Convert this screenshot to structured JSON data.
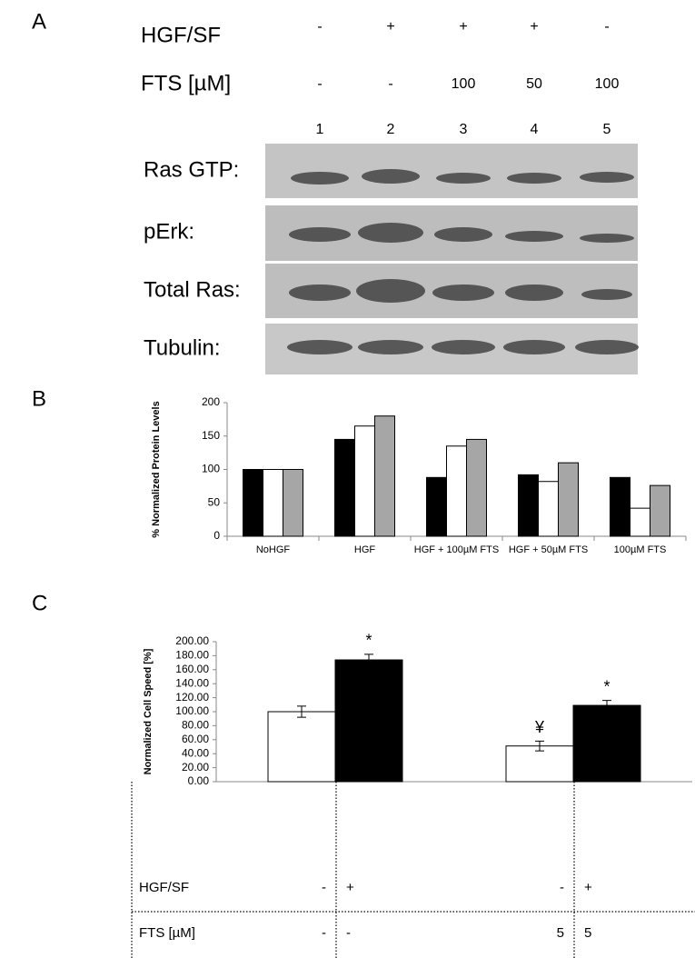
{
  "panel_a": {
    "letter": "A",
    "conditions": [
      {
        "label": "HGF/SF",
        "values": [
          "-",
          "+",
          "+",
          "+",
          "-"
        ]
      },
      {
        "label": "FTS [µM]",
        "values": [
          "-",
          "-",
          "100",
          "50",
          "100"
        ]
      }
    ],
    "lanes": [
      "1",
      "2",
      "3",
      "4",
      "5"
    ],
    "blots": [
      "Ras GTP:",
      "pErk:",
      "Total Ras:",
      "Tubulin:"
    ]
  },
  "letters": [
    "B",
    "C"
  ],
  "chart_data": [
    {
      "type": "bar",
      "ylabel": "% Normalized Protein Levels",
      "categories": [
        "NoHGF",
        "HGF",
        "HGF + 100µM FTS",
        "HGF + 50µM FTS",
        "100µM FTS"
      ],
      "series": [
        {
          "color": "#000000",
          "values": [
            100,
            145,
            88,
            92,
            88
          ]
        },
        {
          "color": "#ffffff",
          "values": [
            100,
            165,
            135,
            82,
            42
          ]
        },
        {
          "color": "#a6a6a6",
          "values": [
            100,
            180,
            145,
            110,
            76
          ]
        }
      ],
      "ylim": [
        0,
        200
      ],
      "yticks": [
        0,
        50,
        100,
        150,
        200
      ]
    },
    {
      "type": "bar",
      "ylabel": "Normalized Cell Speed [%]",
      "series": [
        {
          "color": "#ffffff",
          "values": [
            100,
            51
          ],
          "errors": [
            8,
            7
          ],
          "markers": [
            null,
            "¥"
          ]
        },
        {
          "color": "#000000",
          "values": [
            174,
            109
          ],
          "errors": [
            8,
            7
          ],
          "markers": [
            "*",
            "*"
          ]
        }
      ],
      "ylim": [
        0,
        200
      ],
      "yticks": [
        {
          "value": 0,
          "label": "0.00"
        },
        {
          "value": 20,
          "label": "20.00"
        },
        {
          "value": 40,
          "label": "40.00"
        },
        {
          "value": 60,
          "label": "60.00"
        },
        {
          "value": 80,
          "label": "80.00"
        },
        {
          "value": 100,
          "label": "100.00"
        },
        {
          "value": 120,
          "label": "120.00"
        },
        {
          "value": 140,
          "label": "140.00"
        },
        {
          "value": 160,
          "label": "160.00"
        },
        {
          "value": 180,
          "label": "180.00"
        },
        {
          "value": 200,
          "label": "200.00"
        }
      ],
      "table": [
        {
          "label": "HGF/SF",
          "values": [
            "-",
            "+",
            "-",
            "+"
          ]
        },
        {
          "label": "FTS [µM]",
          "values": [
            "-",
            "-",
            "5",
            "5"
          ]
        }
      ]
    }
  ]
}
